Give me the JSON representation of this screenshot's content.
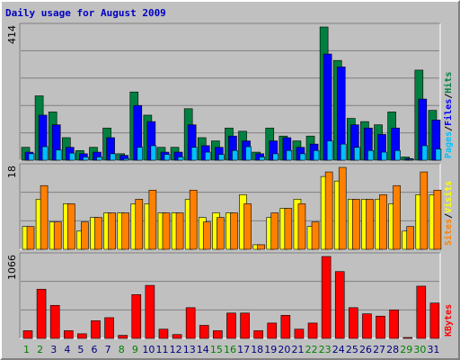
{
  "chart_data": {
    "type": "bar",
    "title": "Daily usage for August 2009",
    "categories": [
      "1",
      "2",
      "3",
      "4",
      "5",
      "6",
      "7",
      "8",
      "9",
      "10",
      "11",
      "12",
      "13",
      "14",
      "15",
      "16",
      "17",
      "18",
      "19",
      "20",
      "21",
      "22",
      "23",
      "24",
      "25",
      "26",
      "27",
      "28",
      "29",
      "30",
      "31"
    ],
    "weekend_days": [
      "1",
      "2",
      "8",
      "9",
      "15",
      "16",
      "22",
      "23",
      "29",
      "30"
    ],
    "colors": {
      "hits": "#008040",
      "files": "#0000ff",
      "pages": "#00c0ff",
      "visits": "#ffff00",
      "sites": "#ff8000",
      "kbytes": "#ff0000",
      "title": "#0000c0",
      "weekday_tick": "#000080",
      "weekend_tick": "#008000",
      "panel_bg": "#c0c0c0",
      "grid": "#808080"
    },
    "panels": [
      {
        "name": "usage",
        "ymax": 414,
        "ymax_label": "414",
        "labels": [
          "Pages",
          "Files",
          "Hits"
        ],
        "series": [
          {
            "name": "Hits",
            "values": [
              40,
              200,
              150,
              70,
              30,
              40,
              100,
              20,
              212,
              140,
              40,
              40,
              160,
              70,
              60,
              100,
              90,
              25,
              100,
              75,
              60,
              75,
              414,
              310,
              130,
              120,
              110,
              150,
              10,
              280,
              155
            ]
          },
          {
            "name": "Files",
            "values": [
              25,
              140,
              110,
              40,
              20,
              25,
              70,
              15,
              170,
              120,
              25,
              25,
              110,
              45,
              40,
              75,
              60,
              20,
              60,
              70,
              40,
              50,
              330,
              290,
              110,
              100,
              80,
              100,
              5,
              190,
              125
            ]
          },
          {
            "name": "Pages",
            "values": [
              20,
              42,
              32,
              22,
              10,
              10,
              20,
              5,
              40,
              45,
              18,
              10,
              40,
              25,
              18,
              30,
              42,
              10,
              20,
              30,
              20,
              30,
              60,
              50,
              40,
              30,
              25,
              30,
              2,
              45,
              35
            ]
          }
        ]
      },
      {
        "name": "visitors",
        "ymax": 18,
        "ymax_label": "18",
        "labels": [
          "Sites",
          "/",
          "Visits"
        ],
        "series": [
          {
            "name": "Visits",
            "values": [
              5,
              11,
              6,
              10,
              4,
              7,
              8,
              8,
              10,
              10,
              8,
              8,
              11,
              7,
              8,
              8,
              12,
              1,
              7,
              9,
              11,
              5,
              16,
              15,
              11,
              11,
              11,
              10,
              4,
              12,
              12
            ]
          },
          {
            "name": "Sites",
            "values": [
              5,
              14,
              6,
              10,
              6,
              7,
              8,
              8,
              11,
              13,
              8,
              8,
              13,
              6,
              7,
              8,
              10,
              1,
              8,
              9,
              10,
              6,
              17,
              18,
              11,
              11,
              12,
              14,
              5,
              17,
              13
            ]
          }
        ]
      },
      {
        "name": "kbytes",
        "ymax": 1066,
        "ymax_label": "1066",
        "labels": [
          "KBytes"
        ],
        "series": [
          {
            "name": "KBytes",
            "values": [
              100,
              640,
              430,
              100,
              60,
              230,
              270,
              40,
              570,
              690,
              120,
              50,
              400,
              170,
              100,
              330,
              330,
              100,
              200,
              300,
              120,
              200,
              1066,
              870,
              400,
              320,
              290,
              370,
              10,
              680,
              460
            ]
          }
        ]
      }
    ]
  }
}
